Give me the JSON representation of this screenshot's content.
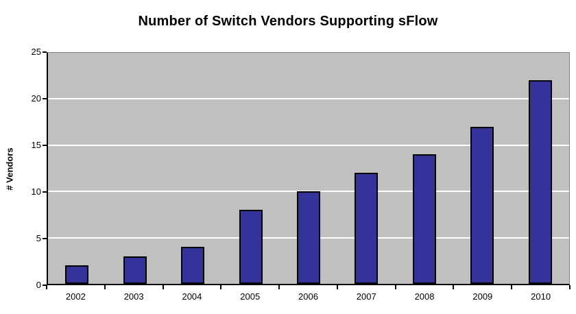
{
  "chart_data": {
    "type": "bar",
    "title": "Number of Switch Vendors Supporting sFlow",
    "ylabel": "# Vendors",
    "xlabel": "",
    "categories": [
      "2002",
      "2003",
      "2004",
      "2005",
      "2006",
      "2007",
      "2008",
      "2009",
      "2010"
    ],
    "values": [
      2,
      3,
      4,
      8,
      10,
      12,
      14,
      17,
      22
    ],
    "ylim": [
      0,
      25
    ],
    "ytick_step": 5,
    "ytick_labels": [
      "0",
      "5",
      "10",
      "15",
      "20",
      "25"
    ],
    "grid": "horizontal",
    "legend": "none",
    "colors": {
      "bar_fill": "#333399",
      "bar_border": "#000000",
      "plot_background": "#C0C0C0",
      "gridline": "#FFFFFF",
      "axis_line": "#000000",
      "frame_line": "#848284",
      "text": "#000000",
      "page_background": "#FFFFFF"
    }
  }
}
